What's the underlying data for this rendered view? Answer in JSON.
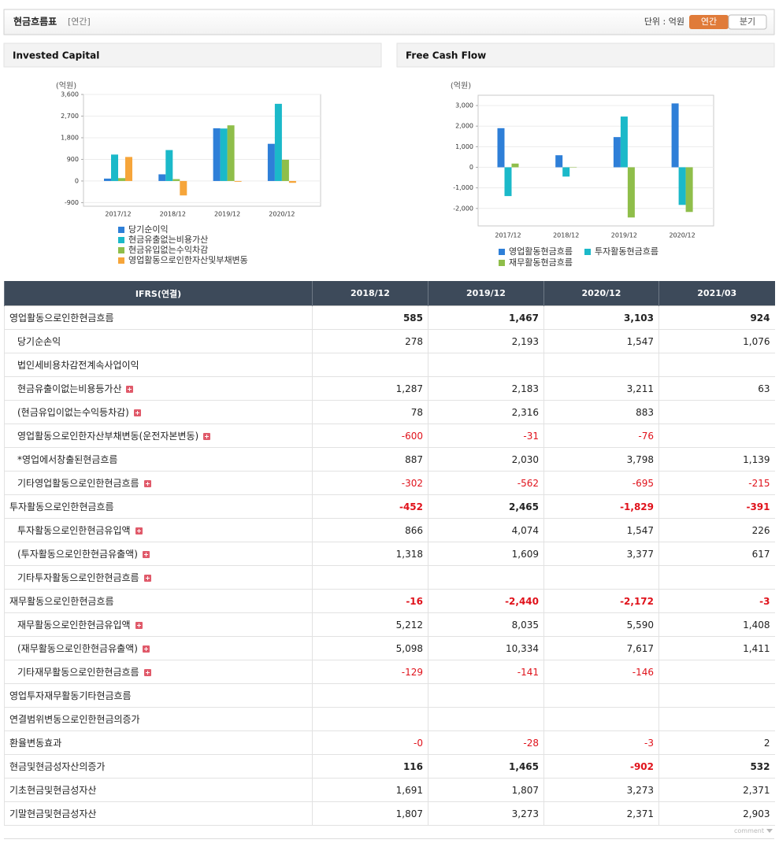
{
  "header": {
    "title": "현금흐름표",
    "period": "[연간]",
    "unit": "단위 : 억원",
    "tabs": [
      "연간",
      "분기"
    ]
  },
  "chart_data": [
    {
      "type": "bar",
      "title": "Invested Capital",
      "y_label": "(억원)",
      "categories": [
        "2017/12",
        "2018/12",
        "2019/12",
        "2020/12"
      ],
      "series": [
        {
          "name": "당기순이익",
          "color": "#2e7fd8",
          "values": [
            100,
            278,
            2193,
            1547
          ]
        },
        {
          "name": "현금유출없는비용가산",
          "color": "#1bb9c9",
          "values": [
            1100,
            1287,
            2183,
            3211
          ]
        },
        {
          "name": "현금유입없는수익차감",
          "color": "#8fbe4a",
          "values": [
            120,
            78,
            2316,
            883
          ]
        },
        {
          "name": "영업활동으로인한자산및부채변동",
          "color": "#f6a53a",
          "values": [
            1000,
            -600,
            -31,
            -76
          ]
        }
      ],
      "ylim": [
        -1050,
        3600
      ],
      "yticks": [
        -900,
        0,
        900,
        {
          "value": 1800,
          "label": "1,800"
        },
        {
          "value": 2700,
          "label": "2,700"
        },
        {
          "value": 3600,
          "label": "3,600"
        }
      ],
      "grid": true
    },
    {
      "type": "bar",
      "title": "Free Cash Flow",
      "y_label": "(억원)",
      "categories": [
        "2017/12",
        "2018/12",
        "2019/12",
        "2020/12"
      ],
      "series": [
        {
          "name": "영업활동현금흐름",
          "color": "#2e7fd8",
          "values": [
            1900,
            585,
            1467,
            3103
          ]
        },
        {
          "name": "투자활동현금흐름",
          "color": "#1bb9c9",
          "values": [
            -1400,
            -452,
            2465,
            -1829
          ]
        },
        {
          "name": "재무활동현금흐름",
          "color": "#8fbe4a",
          "values": [
            180,
            -16,
            -2440,
            -2172
          ]
        }
      ],
      "ylim": [
        -2850,
        3500
      ],
      "yticks": [
        {
          "value": -2000,
          "label": "-2,000"
        },
        {
          "value": -1000,
          "label": "-1,000"
        },
        0,
        {
          "value": 1000,
          "label": "1,000"
        },
        {
          "value": 2000,
          "label": "2,000"
        },
        {
          "value": 3000,
          "label": "3,000"
        }
      ],
      "grid": true
    }
  ],
  "table": {
    "columns": [
      "IFRS(연결)",
      "2018/12",
      "2019/12",
      "2020/12",
      "2021/03"
    ],
    "rows": [
      {
        "label": "영업활동으로인한현금흐름",
        "values": [
          "585",
          "1,467",
          "3,103",
          "924"
        ],
        "bold": true,
        "level": 0,
        "expandable": false
      },
      {
        "label": "당기순손익",
        "values": [
          "278",
          "2,193",
          "1,547",
          "1,076"
        ],
        "bold": false,
        "level": 1,
        "expandable": false
      },
      {
        "label": "법인세비용차감전계속사업이익",
        "values": [
          null,
          null,
          null,
          null
        ],
        "bold": false,
        "level": 1,
        "expandable": false
      },
      {
        "label": "현금유출이없는비용등가산",
        "values": [
          "1,287",
          "2,183",
          "3,211",
          "63"
        ],
        "bold": false,
        "level": 1,
        "expandable": true
      },
      {
        "label": "(현금유입이없는수익등차감)",
        "values": [
          "78",
          "2,316",
          "883",
          null
        ],
        "bold": false,
        "level": 1,
        "expandable": true
      },
      {
        "label": "영업활동으로인한자산부채변동(운전자본변동)",
        "values": [
          "-600",
          "-31",
          "-76",
          null
        ],
        "bold": false,
        "level": 1,
        "expandable": true
      },
      {
        "label": "*영업에서창출된현금흐름",
        "values": [
          "887",
          "2,030",
          "3,798",
          "1,139"
        ],
        "bold": false,
        "level": 1,
        "expandable": false
      },
      {
        "label": "기타영업활동으로인한현금흐름",
        "values": [
          "-302",
          "-562",
          "-695",
          "-215"
        ],
        "bold": false,
        "level": 1,
        "expandable": true
      },
      {
        "label": "투자활동으로인한현금흐름",
        "values": [
          "-452",
          "2,465",
          "-1,829",
          "-391"
        ],
        "bold": true,
        "level": 0,
        "expandable": false
      },
      {
        "label": "투자활동으로인한현금유입액",
        "values": [
          "866",
          "4,074",
          "1,547",
          "226"
        ],
        "bold": false,
        "level": 1,
        "expandable": true
      },
      {
        "label": "(투자활동으로인한현금유출액)",
        "values": [
          "1,318",
          "1,609",
          "3,377",
          "617"
        ],
        "bold": false,
        "level": 1,
        "expandable": true
      },
      {
        "label": "기타투자활동으로인한현금흐름",
        "values": [
          null,
          null,
          null,
          null
        ],
        "bold": false,
        "level": 1,
        "expandable": true
      },
      {
        "label": "재무활동으로인한현금흐름",
        "values": [
          "-16",
          "-2,440",
          "-2,172",
          "-3"
        ],
        "bold": true,
        "level": 0,
        "expandable": false
      },
      {
        "label": "재무활동으로인한현금유입액",
        "values": [
          "5,212",
          "8,035",
          "5,590",
          "1,408"
        ],
        "bold": false,
        "level": 1,
        "expandable": true
      },
      {
        "label": "(재무활동으로인한현금유출액)",
        "values": [
          "5,098",
          "10,334",
          "7,617",
          "1,411"
        ],
        "bold": false,
        "level": 1,
        "expandable": true
      },
      {
        "label": "기타재무활동으로인한현금흐름",
        "values": [
          "-129",
          "-141",
          "-146",
          null
        ],
        "bold": false,
        "level": 1,
        "expandable": true
      },
      {
        "label": "영업투자재무활동기타현금흐름",
        "values": [
          null,
          null,
          null,
          null
        ],
        "bold": false,
        "level": 0,
        "expandable": false
      },
      {
        "label": "연결범위변동으로인한현금의증가",
        "values": [
          null,
          null,
          null,
          null
        ],
        "bold": false,
        "level": 0,
        "expandable": false
      },
      {
        "label": "환율변동효과",
        "values": [
          "-0",
          "-28",
          "-3",
          "2"
        ],
        "bold": false,
        "level": 0,
        "expandable": false
      },
      {
        "label": "현금및현금성자산의증가",
        "values": [
          "116",
          "1,465",
          "-902",
          "532"
        ],
        "bold": true,
        "level": 0,
        "expandable": false
      },
      {
        "label": "기초현금및현금성자산",
        "values": [
          "1,691",
          "1,807",
          "3,273",
          "2,371"
        ],
        "bold": false,
        "level": 0,
        "expandable": false
      },
      {
        "label": "기말현금및현금성자산",
        "values": [
          "1,807",
          "3,273",
          "2,371",
          "2,903"
        ],
        "bold": false,
        "level": 0,
        "expandable": false
      }
    ]
  },
  "footer": {
    "comment": "comment"
  }
}
